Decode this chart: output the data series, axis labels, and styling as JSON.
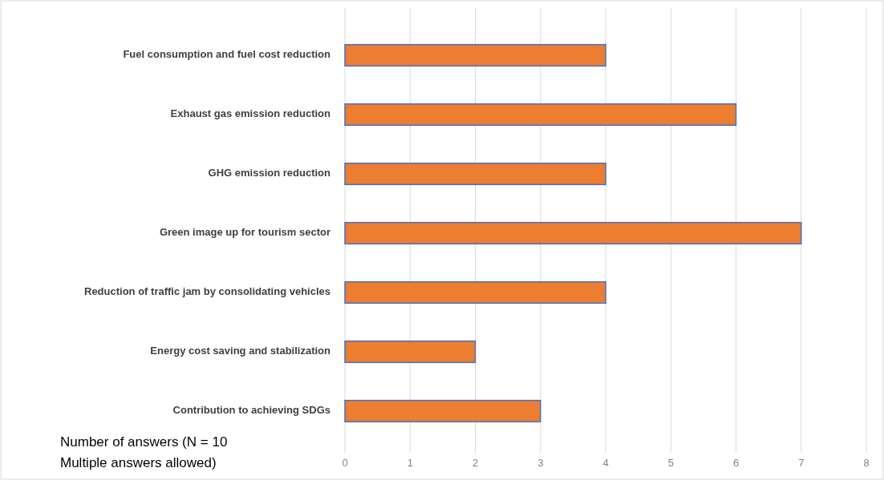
{
  "chart_data": {
    "type": "bar",
    "orientation": "horizontal",
    "categories": [
      "Fuel consumption and fuel cost reduction",
      "Exhaust gas emission reduction",
      "GHG emission reduction",
      "Green image up for tourism sector",
      "Reduction of traffic jam by consolidating vehicles",
      "Energy cost saving and stabilization",
      "Contribution to achieving SDGs"
    ],
    "values": [
      4,
      6,
      4,
      7,
      4,
      2,
      3
    ],
    "color": "#ed7d31",
    "xlim": [
      0,
      8
    ],
    "xticks": [
      0,
      1,
      2,
      3,
      4,
      5,
      6,
      7,
      8
    ],
    "xlabel": "Number of answers (N = 10\nMultiple answers allowed)",
    "grid": "x"
  }
}
